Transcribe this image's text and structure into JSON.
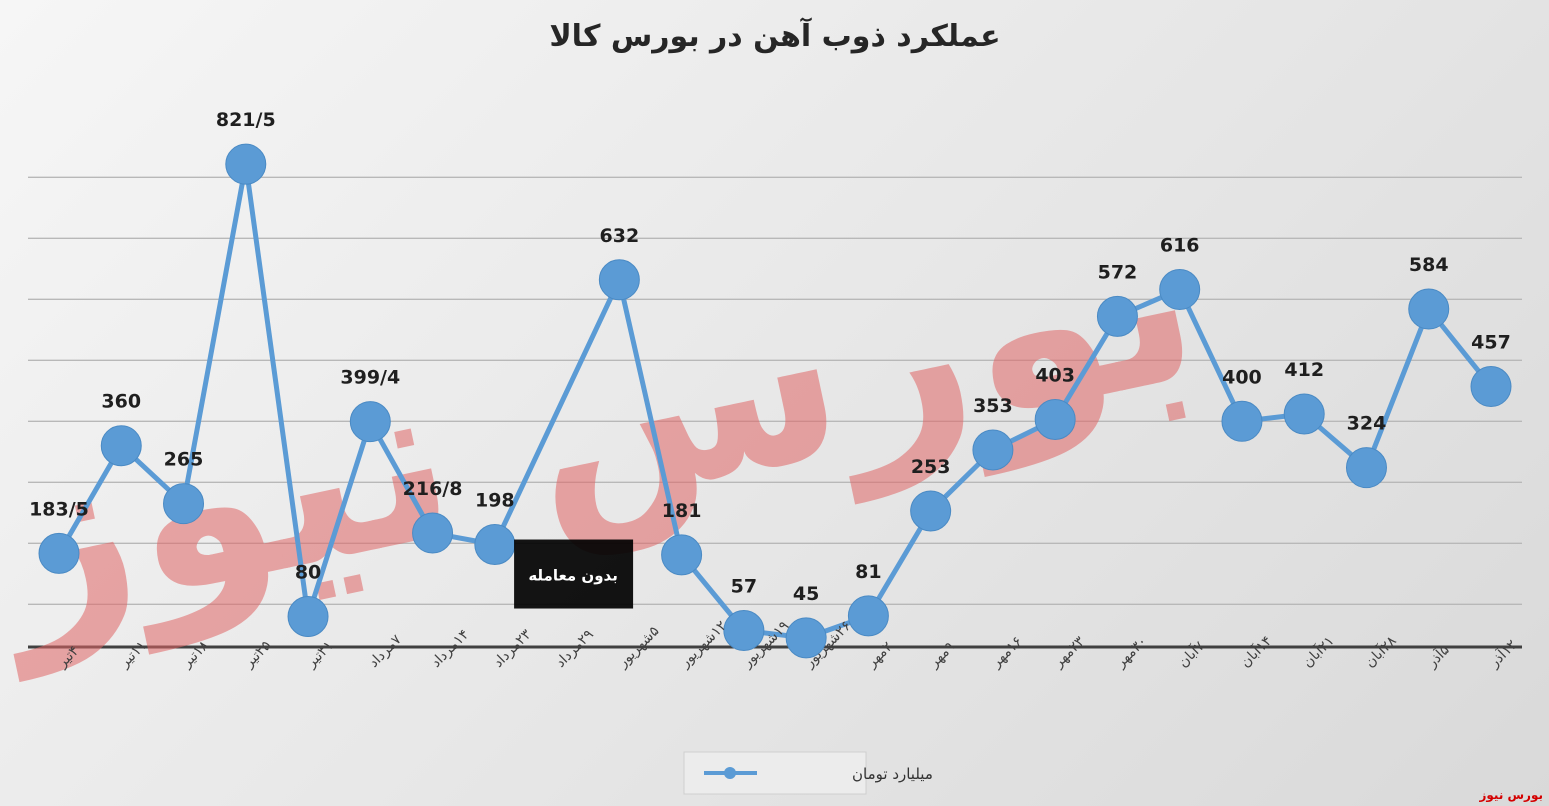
{
  "chart_data": {
    "type": "line",
    "title": "عملکرد ذوب آهن در بورس کالا",
    "categories": [
      "۴تیر",
      "۱۱تیر",
      "۱۸تیر",
      "۲۵تیر",
      "۳۱تیر",
      "۷مرداد",
      "۱۴مرداد",
      "۲۳مرداد",
      "۲۹مرداد",
      "۵شهریور",
      "۱۲شهریور",
      "۱۹شهریور",
      "۲۶شهریور",
      "۲مهر",
      "۹مهر",
      "۱۶مهر",
      "۲۳مهر",
      "۳۰مهر",
      "۷آبان",
      "۱۴آبان",
      "۲۱آبان",
      "۲۸آبان",
      "۵آذر",
      "۱۲آذر"
    ],
    "series": [
      {
        "name": "میلیارد تومان",
        "values": [
          183.5,
          360,
          265,
          821.5,
          80,
          399.4,
          216.8,
          198,
          null,
          632,
          181,
          57,
          45,
          81,
          253,
          353,
          403,
          572,
          616,
          400,
          412,
          324,
          584,
          457
        ],
        "labels": [
          "183/5",
          "360",
          "265",
          "821/5",
          "80",
          "399/4",
          "216/8",
          "198",
          "",
          "632",
          "181",
          "57",
          "45",
          "81",
          "253",
          "353",
          "403",
          "572",
          "616",
          "400",
          "412",
          "324",
          "584",
          "457"
        ],
        "color": "#5b9bd5"
      }
    ],
    "ylim": [
      -70,
      930
    ],
    "grid": true,
    "legend": "bottom-center",
    "annotation": "بدون معامله",
    "annotation_category_index": 8,
    "annotation_value": 198
  },
  "watermark": {
    "text": "بورس نیوز",
    "color": "#e06666"
  },
  "credit": "بورس نیوز"
}
